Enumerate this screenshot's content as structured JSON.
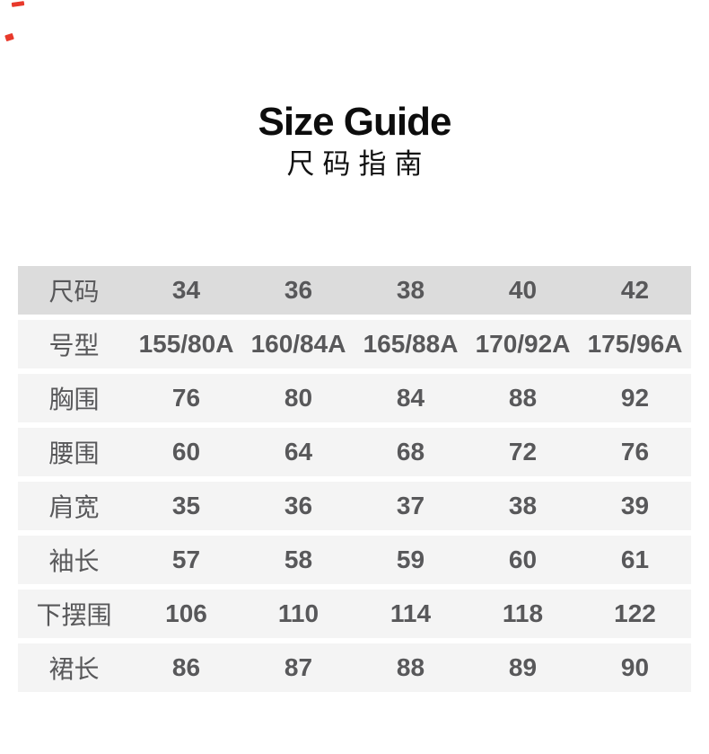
{
  "page": {
    "background": "#ffffff"
  },
  "header": {
    "title": "Size Guide",
    "subtitle": "尺码指南"
  },
  "size_table": {
    "rows": [
      {
        "label": "尺码",
        "values": [
          "34",
          "36",
          "38",
          "40",
          "42"
        ]
      },
      {
        "label": "号型",
        "values": [
          "155/80A",
          "160/84A",
          "165/88A",
          "170/92A",
          "175/96A"
        ]
      },
      {
        "label": "胸围",
        "values": [
          "76",
          "80",
          "84",
          "88",
          "92"
        ]
      },
      {
        "label": "腰围",
        "values": [
          "60",
          "64",
          "68",
          "72",
          "76"
        ]
      },
      {
        "label": "肩宽",
        "values": [
          "35",
          "36",
          "37",
          "38",
          "39"
        ]
      },
      {
        "label": "袖长",
        "values": [
          "57",
          "58",
          "59",
          "60",
          "61"
        ]
      },
      {
        "label": "下摆围",
        "values": [
          "106",
          "110",
          "114",
          "118",
          "122"
        ]
      },
      {
        "label": "裙长",
        "values": [
          "86",
          "87",
          "88",
          "89",
          "90"
        ]
      }
    ]
  },
  "colors": {
    "header_row_bg": "#dcdcdc",
    "body_row_bg": "#f4f4f4",
    "table_text": "#58585a",
    "title_text": "#0d0d0d",
    "artifact_red": "#e8392b"
  }
}
